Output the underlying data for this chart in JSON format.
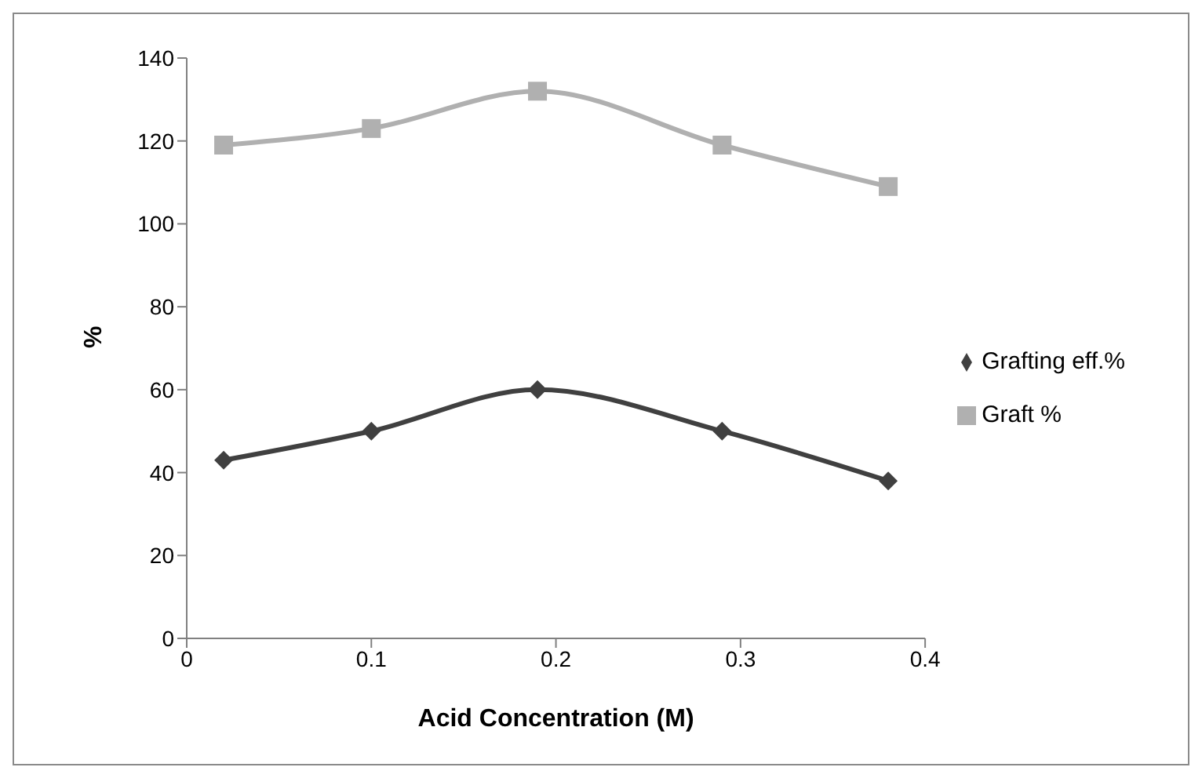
{
  "chart_data": {
    "type": "line",
    "xlabel": "Acid Concentration (M)",
    "ylabel": "%",
    "xlim": [
      0,
      0.4
    ],
    "xticks": [
      0,
      0.1,
      0.2,
      0.3,
      0.4
    ],
    "ylim": [
      0,
      140
    ],
    "yticks": [
      0,
      20,
      40,
      60,
      80,
      100,
      120,
      140
    ],
    "x": [
      0.02,
      0.1,
      0.19,
      0.29,
      0.38
    ],
    "series": [
      {
        "name": "Grafting eff.%",
        "color": "#404040",
        "marker": "diamond",
        "values": [
          43,
          50,
          60,
          50,
          38
        ]
      },
      {
        "name": "Graft %",
        "color": "#b0b0b0",
        "marker": "square",
        "values": [
          119,
          123,
          132,
          119,
          109
        ]
      }
    ],
    "legend": "right",
    "line_style": "solid"
  }
}
